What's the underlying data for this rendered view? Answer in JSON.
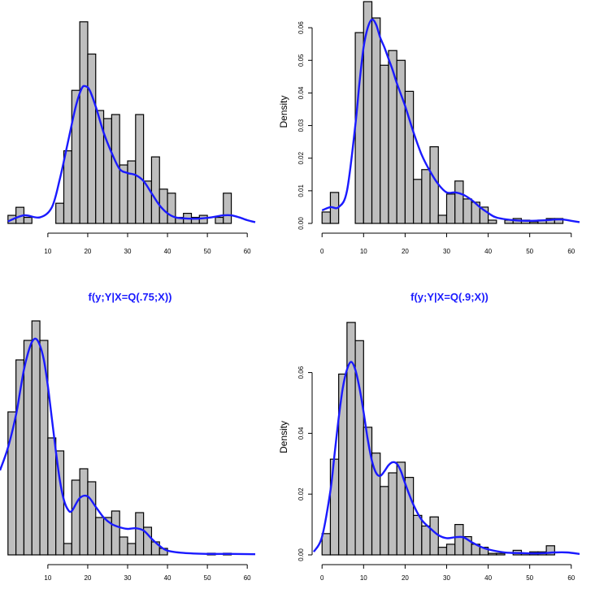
{
  "colors": {
    "bar_fill": "#bebebe",
    "bar_stroke": "#000000",
    "density": "#1a1aff",
    "title": "#1a1aff"
  },
  "chart_data": [
    {
      "type": "bar",
      "title": "",
      "ylabel": "",
      "xlim": [
        -2,
        62
      ],
      "ylim": [
        0,
        0.055
      ],
      "xticks": [
        10,
        20,
        30,
        40,
        50,
        60
      ],
      "yticks": [],
      "bin_width": 2,
      "bins_x0": [
        0,
        2,
        4,
        6,
        8,
        10,
        12,
        14,
        16,
        18,
        20,
        22,
        24,
        26,
        28,
        30,
        32,
        34,
        36,
        38,
        40,
        42,
        44,
        46,
        48,
        50,
        52,
        54
      ],
      "values": [
        0.002,
        0.004,
        0.0015,
        0,
        0,
        0,
        0.005,
        0.018,
        0.033,
        0.05,
        0.042,
        0.028,
        0.026,
        0.027,
        0.0145,
        0.0155,
        0.027,
        0.0105,
        0.0165,
        0.0085,
        0.0075,
        0.0015,
        0.0025,
        0.0015,
        0.002,
        0,
        0.0015,
        0.0075
      ],
      "density": {
        "x": [
          0,
          4,
          8,
          11,
          13,
          15,
          17,
          18.5,
          19.5,
          20.5,
          22,
          24,
          26,
          28,
          30,
          32,
          34,
          36,
          38,
          40,
          42,
          45,
          48,
          51,
          54,
          56,
          58,
          60,
          62
        ],
        "y": [
          0.0005,
          0.002,
          0.0015,
          0.004,
          0.011,
          0.02,
          0.029,
          0.0335,
          0.034,
          0.033,
          0.029,
          0.0225,
          0.0175,
          0.0135,
          0.0125,
          0.012,
          0.0105,
          0.0075,
          0.0045,
          0.0025,
          0.0015,
          0.0012,
          0.0012,
          0.0015,
          0.002,
          0.002,
          0.0015,
          0.0008,
          0.0003
        ]
      }
    },
    {
      "type": "bar",
      "title": "",
      "ylabel": "Density",
      "xlim": [
        -2,
        62
      ],
      "ylim": [
        0,
        0.068
      ],
      "xticks": [
        0,
        10,
        20,
        30,
        40,
        50,
        60
      ],
      "yticks": [
        0.0,
        0.01,
        0.02,
        0.03,
        0.04,
        0.05,
        0.06
      ],
      "ytick_labels": [
        "0.00",
        "0.01",
        "0.02",
        "0.03",
        "0.04",
        "0.05",
        "0.06"
      ],
      "bin_width": 2,
      "bins_x0": [
        0,
        2,
        4,
        6,
        8,
        10,
        12,
        14,
        16,
        18,
        20,
        22,
        24,
        26,
        28,
        30,
        32,
        34,
        36,
        38,
        40,
        42,
        44,
        46,
        48,
        50,
        52,
        54,
        56
      ],
      "values": [
        0.0035,
        0.0095,
        0,
        0,
        0.0585,
        0.068,
        0.063,
        0.0485,
        0.053,
        0.05,
        0.0405,
        0.0135,
        0.0165,
        0.0235,
        0.0025,
        0.009,
        0.013,
        0.0075,
        0.0065,
        0.005,
        0.001,
        0,
        0.001,
        0.0015,
        0.001,
        0.0005,
        0.001,
        0.0015,
        0.0015
      ],
      "density": {
        "x": [
          0,
          2,
          4,
          6,
          8,
          9,
          10,
          11,
          12,
          13,
          14,
          15,
          16,
          17,
          18,
          20,
          22,
          24,
          26,
          28,
          30,
          32,
          34,
          36,
          38,
          40,
          42,
          46,
          50,
          54,
          56,
          58,
          60,
          62
        ],
        "y": [
          0.004,
          0.005,
          0.005,
          0.01,
          0.03,
          0.043,
          0.054,
          0.06,
          0.0625,
          0.061,
          0.057,
          0.054,
          0.0505,
          0.047,
          0.043,
          0.036,
          0.028,
          0.021,
          0.016,
          0.012,
          0.0095,
          0.0095,
          0.0088,
          0.0072,
          0.005,
          0.0032,
          0.0018,
          0.001,
          0.0008,
          0.001,
          0.0012,
          0.0012,
          0.0008,
          0.0004
        ]
      }
    },
    {
      "type": "bar",
      "title": "f(y;Y|X=Q(.75;X))",
      "ylabel": "",
      "xlim": [
        -2,
        62
      ],
      "ylim": [
        0,
        0.072
      ],
      "xticks": [
        10,
        20,
        30,
        40,
        50,
        60
      ],
      "yticks": [],
      "bin_width": 2,
      "bins_x0": [
        0,
        2,
        4,
        6,
        8,
        10,
        12,
        14,
        16,
        18,
        20,
        22,
        24,
        26,
        28,
        30,
        32,
        34,
        36,
        38,
        40,
        42,
        44,
        46,
        48,
        50,
        52,
        54
      ],
      "values": [
        0.044,
        0.06,
        0.066,
        0.072,
        0.066,
        0.036,
        0.032,
        0.0035,
        0.023,
        0.0265,
        0.0225,
        0.0115,
        0.0115,
        0.0135,
        0.0055,
        0.0035,
        0.013,
        0.0085,
        0.004,
        0.002,
        0,
        0,
        0,
        0,
        0,
        0.0005,
        0,
        0.0005
      ],
      "density": {
        "x": [
          -2,
          0,
          2,
          3,
          4,
          5,
          6,
          7,
          8,
          9,
          10,
          11,
          12,
          13,
          14,
          15,
          16,
          18,
          20,
          22,
          24,
          26,
          28,
          30,
          32,
          34,
          36,
          38,
          40,
          44,
          50,
          56,
          62
        ],
        "y": [
          0.026,
          0.033,
          0.043,
          0.05,
          0.057,
          0.062,
          0.0655,
          0.0665,
          0.0645,
          0.06,
          0.052,
          0.042,
          0.032,
          0.023,
          0.017,
          0.014,
          0.0135,
          0.0175,
          0.018,
          0.0148,
          0.0115,
          0.0095,
          0.0085,
          0.008,
          0.0082,
          0.0075,
          0.005,
          0.0028,
          0.0013,
          0.0006,
          0.0003,
          0.0003,
          0.0002
        ]
      }
    },
    {
      "type": "bar",
      "title": "f(y;Y|X=Q(.9;X))",
      "ylabel": "Density",
      "xlim": [
        -2,
        62
      ],
      "ylim": [
        0,
        0.077
      ],
      "xticks": [
        0,
        10,
        20,
        30,
        40,
        50,
        60
      ],
      "yticks": [
        0.0,
        0.02,
        0.04,
        0.06
      ],
      "ytick_labels": [
        "0.00",
        "0.02",
        "0.04",
        "0.06"
      ],
      "bin_width": 2,
      "bins_x0": [
        0,
        2,
        4,
        6,
        8,
        10,
        12,
        14,
        16,
        18,
        20,
        22,
        24,
        26,
        28,
        30,
        32,
        34,
        36,
        38,
        40,
        42,
        44,
        46,
        48,
        50,
        52,
        54
      ],
      "values": [
        0.007,
        0.0315,
        0.0595,
        0.0765,
        0.0705,
        0.042,
        0.0335,
        0.0225,
        0.027,
        0.0305,
        0.0255,
        0.013,
        0.0095,
        0.0125,
        0.0025,
        0.0035,
        0.01,
        0.006,
        0.0035,
        0.0025,
        0.0005,
        0.0005,
        0,
        0.0015,
        0.0005,
        0.001,
        0.001,
        0.003
      ],
      "density": {
        "x": [
          -2,
          0,
          2,
          3,
          4,
          5,
          6,
          7,
          8,
          9,
          10,
          11,
          12,
          13,
          14,
          15,
          16,
          17,
          18,
          19,
          20,
          22,
          24,
          26,
          28,
          30,
          32,
          34,
          36,
          38,
          40,
          44,
          48,
          52,
          56,
          59,
          62
        ],
        "y": [
          0.001,
          0.006,
          0.021,
          0.033,
          0.045,
          0.055,
          0.061,
          0.0635,
          0.061,
          0.055,
          0.047,
          0.038,
          0.031,
          0.027,
          0.026,
          0.0275,
          0.0295,
          0.0305,
          0.03,
          0.0275,
          0.0235,
          0.0165,
          0.0115,
          0.0088,
          0.0065,
          0.0055,
          0.0058,
          0.0058,
          0.0042,
          0.0028,
          0.0018,
          0.0008,
          0.0006,
          0.0005,
          0.0008,
          0.0008,
          0.0003
        ]
      }
    }
  ]
}
